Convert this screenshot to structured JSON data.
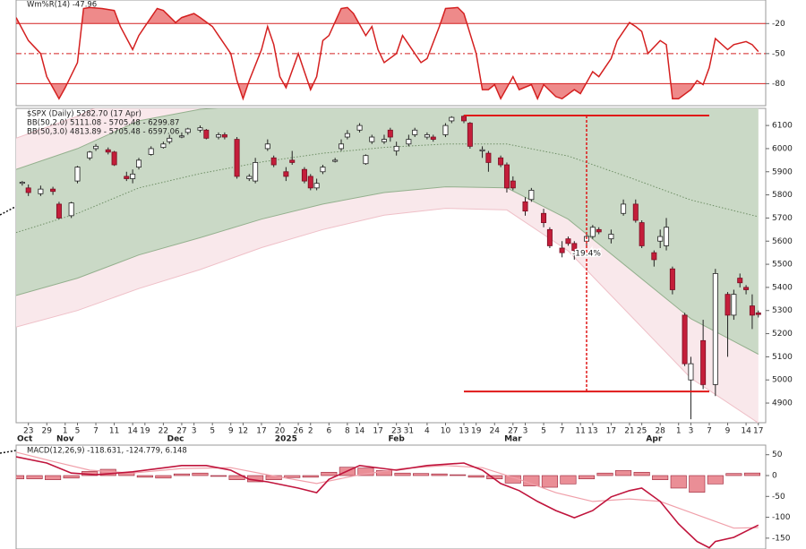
{
  "chart_data": [
    {
      "type": "line",
      "title": "Wm%R(14) -47.96",
      "color": "#d42020",
      "fill_color": "#ee8a8a",
      "xlim": [
        0,
        122.2
      ],
      "ylim": [
        -102,
        3.5
      ],
      "yticks": [
        -20,
        -50,
        -80
      ],
      "grid": true,
      "x": [
        0,
        2,
        4,
        5,
        7,
        8,
        10,
        11,
        12,
        14,
        16,
        17,
        19,
        20,
        21,
        23,
        24,
        26,
        27,
        29,
        30,
        32,
        33,
        35,
        36,
        37,
        38,
        40,
        41,
        42,
        43,
        44,
        46,
        47,
        48,
        49,
        50,
        51,
        53,
        54,
        55,
        57,
        58,
        59,
        60,
        62,
        63,
        65,
        66,
        67,
        69,
        70,
        72,
        73,
        75,
        76,
        77,
        78,
        79,
        81,
        82,
        84,
        85,
        86,
        88,
        89,
        91,
        92,
        94,
        95,
        97,
        98,
        100,
        101,
        102,
        103,
        105,
        106,
        107,
        108,
        110,
        111,
        112,
        113,
        114,
        116,
        117,
        119,
        120,
        121
      ],
      "values": [
        -14,
        -37,
        -50,
        -73,
        -95,
        -84,
        -59,
        -5,
        -4,
        -5,
        -7,
        -23,
        -46,
        -32,
        -23,
        -5,
        -7,
        -19,
        -14,
        -10,
        -14,
        -23,
        -32,
        -50,
        -77,
        -95,
        -77,
        -46,
        -23,
        -41,
        -73,
        -84,
        -50,
        -68,
        -86,
        -73,
        -37,
        -32,
        -5,
        -4,
        -10,
        -32,
        -23,
        -46,
        -59,
        -50,
        -32,
        -50,
        -59,
        -55,
        -23,
        -5,
        -4,
        -10,
        -50,
        -86,
        -86,
        -81,
        -95,
        -73,
        -86,
        -81,
        -95,
        -81,
        -93,
        -95,
        -86,
        -90,
        -68,
        -73,
        -55,
        -37,
        -19,
        -23,
        -28,
        -50,
        -37,
        -41,
        -95,
        -95,
        -86,
        -77,
        -81,
        -64,
        -35,
        -46,
        -41,
        -38,
        -41,
        -47.96
      ]
    },
    {
      "type": "candlestick",
      "title": "$SPX (Daily) 5282.70 (17 Apr)",
      "xlim": [
        0,
        122.2
      ],
      "ylim": [
        4815,
        6174
      ],
      "yticks": [
        4900,
        5000,
        5100,
        5200,
        5300,
        5400,
        5500,
        5600,
        5700,
        5800,
        5900,
        6000,
        6100
      ],
      "xticks": [
        {
          "value": 2,
          "label": "23"
        },
        {
          "value": 5,
          "label": "29"
        },
        {
          "value": 8,
          "label": "1"
        },
        {
          "value": 10,
          "label": "5"
        },
        {
          "value": 13,
          "label": "7"
        },
        {
          "value": 16,
          "label": "11"
        },
        {
          "value": 19,
          "label": "14"
        },
        {
          "value": 21,
          "label": "19"
        },
        {
          "value": 24,
          "label": "22"
        },
        {
          "value": 27,
          "label": "27"
        },
        {
          "value": 29,
          "label": "3"
        },
        {
          "value": 32,
          "label": "5"
        },
        {
          "value": 35,
          "label": "9"
        },
        {
          "value": 37,
          "label": "12"
        },
        {
          "value": 40,
          "label": "17"
        },
        {
          "value": 43,
          "label": "20"
        },
        {
          "value": 46,
          "label": "26"
        },
        {
          "value": 48,
          "label": "2"
        },
        {
          "value": 51,
          "label": "6"
        },
        {
          "value": 54,
          "label": "8"
        },
        {
          "value": 56,
          "label": "14"
        },
        {
          "value": 59,
          "label": "17"
        },
        {
          "value": 62,
          "label": "23"
        },
        {
          "value": 64,
          "label": "31"
        },
        {
          "value": 67,
          "label": "4"
        },
        {
          "value": 70,
          "label": "10"
        },
        {
          "value": 73,
          "label": "13"
        },
        {
          "value": 75,
          "label": "19"
        },
        {
          "value": 78,
          "label": "24"
        },
        {
          "value": 81,
          "label": "27"
        },
        {
          "value": 83,
          "label": "3"
        },
        {
          "value": 86,
          "label": "5"
        },
        {
          "value": 89,
          "label": "7"
        },
        {
          "value": 92,
          "label": "11"
        },
        {
          "value": 94,
          "label": "13"
        },
        {
          "value": 97,
          "label": "17"
        },
        {
          "value": 100,
          "label": "21"
        },
        {
          "value": 102,
          "label": "25"
        },
        {
          "value": 105,
          "label": "28"
        },
        {
          "value": 108,
          "label": "1"
        },
        {
          "value": 110,
          "label": "3"
        },
        {
          "value": 113,
          "label": "7"
        },
        {
          "value": 116,
          "label": "9"
        },
        {
          "value": 119,
          "label": "14"
        },
        {
          "value": 121,
          "label": "17"
        }
      ],
      "month_ticks": [
        {
          "value": 0,
          "label": "Oct"
        },
        {
          "value": 8,
          "label": "Nov"
        },
        {
          "value": 26,
          "label": "Dec"
        },
        {
          "value": 44,
          "label": "2025"
        },
        {
          "value": 62,
          "label": "Feb"
        },
        {
          "value": 81,
          "label": "Mar"
        },
        {
          "value": 104,
          "label": "Apr"
        }
      ],
      "up_color": "#ffffff",
      "down_color": "#c41e3a",
      "x": [
        1,
        2,
        4,
        6,
        7,
        9,
        10,
        12,
        13,
        15,
        16,
        18,
        19,
        20,
        22,
        24,
        25,
        27,
        28,
        30,
        31,
        33,
        34,
        36,
        38,
        39,
        41,
        42,
        44,
        45,
        47,
        48,
        49,
        50,
        52,
        53,
        54,
        56,
        57,
        58,
        60,
        61,
        62,
        64,
        65,
        67,
        68,
        70,
        71,
        73,
        74,
        76,
        77,
        79,
        80,
        81,
        83,
        84,
        86,
        87,
        89,
        90,
        91,
        93,
        94,
        95,
        97,
        99,
        101,
        102,
        104,
        105,
        106,
        107,
        109,
        110,
        112,
        114,
        116,
        117,
        118,
        119,
        120,
        121
      ],
      "open": [
        5850,
        5830,
        5805,
        5825,
        5760,
        5710,
        5860,
        5960,
        6000,
        5995,
        5985,
        5880,
        5870,
        5920,
        5975,
        6005,
        6030,
        6050,
        6070,
        6080,
        6080,
        6050,
        6060,
        6040,
        5870,
        5860,
        6000,
        5960,
        5900,
        5950,
        5910,
        5880,
        5830,
        5900,
        5945,
        6000,
        6050,
        6080,
        5935,
        6030,
        6030,
        6080,
        5990,
        6020,
        6060,
        6050,
        6050,
        6060,
        6120,
        6140,
        6110,
        5990,
        5980,
        5960,
        5930,
        5860,
        5770,
        5780,
        5720,
        5650,
        5570,
        5610,
        5590,
        5600,
        5620,
        5650,
        5610,
        5720,
        5760,
        5680,
        5550,
        5600,
        5580,
        5480,
        5280,
        5000,
        5170,
        4980,
        5370,
        5280,
        5440,
        5400,
        5320,
        5290
      ],
      "high": [
        5860,
        5845,
        5840,
        5835,
        5770,
        5770,
        5925,
        5990,
        6020,
        6005,
        5990,
        5900,
        5910,
        5960,
        6010,
        6030,
        6060,
        6070,
        6090,
        6100,
        6085,
        6070,
        6070,
        6050,
        5890,
        5960,
        6040,
        5970,
        5920,
        5990,
        5920,
        5890,
        5870,
        5930,
        5960,
        6040,
        6080,
        6110,
        5975,
        6060,
        6060,
        6090,
        6030,
        6060,
        6090,
        6070,
        6060,
        6110,
        6140,
        6145,
        6115,
        6010,
        5990,
        5970,
        5940,
        5880,
        5790,
        5830,
        5740,
        5660,
        5600,
        5620,
        5600,
        5640,
        5670,
        5660,
        5650,
        5780,
        5780,
        5690,
        5560,
        5650,
        5700,
        5490,
        5290,
        5100,
        5260,
        5480,
        5380,
        5390,
        5460,
        5410,
        5370,
        5300
      ],
      "low": [
        5840,
        5795,
        5795,
        5800,
        5695,
        5700,
        5850,
        5950,
        5990,
        5975,
        5925,
        5860,
        5850,
        5910,
        5970,
        6000,
        6020,
        6045,
        6060,
        6070,
        6040,
        6040,
        6040,
        5870,
        5860,
        5850,
        5990,
        5920,
        5860,
        5930,
        5850,
        5820,
        5820,
        5890,
        5940,
        5990,
        6040,
        6070,
        5930,
        6020,
        6020,
        6030,
        5970,
        6010,
        6050,
        6040,
        6030,
        6050,
        6110,
        6110,
        6000,
        5960,
        5900,
        5920,
        5810,
        5820,
        5710,
        5770,
        5660,
        5570,
        5530,
        5580,
        5520,
        5580,
        5610,
        5630,
        5590,
        5710,
        5680,
        5570,
        5490,
        5570,
        5560,
        5370,
        5060,
        4830,
        4960,
        4930,
        5100,
        5260,
        5400,
        5370,
        5220,
        5270
      ],
      "close": [
        5855,
        5810,
        5825,
        5815,
        5700,
        5765,
        5920,
        5985,
        6010,
        5985,
        5930,
        5870,
        5890,
        5950,
        6000,
        6020,
        6045,
        6055,
        6085,
        6090,
        6045,
        6060,
        6050,
        5880,
        5880,
        5940,
        6020,
        5930,
        5880,
        5940,
        5860,
        5830,
        5850,
        5920,
        5950,
        6020,
        6065,
        6100,
        5970,
        6050,
        6040,
        6050,
        6010,
        6040,
        6080,
        6060,
        6040,
        6100,
        6135,
        6120,
        6010,
        5995,
        5940,
        5930,
        5830,
        5830,
        5730,
        5820,
        5680,
        5580,
        5550,
        5590,
        5560,
        5620,
        5660,
        5640,
        5630,
        5760,
        5690,
        5580,
        5520,
        5620,
        5660,
        5390,
        5070,
        5070,
        4980,
        5460,
        5280,
        5370,
        5420,
        5390,
        5280,
        5282.7
      ],
      "band_x": [
        0,
        10,
        20,
        30,
        40,
        50,
        60,
        70,
        80,
        90,
        100,
        110,
        121
      ],
      "middle": [
        5637,
        5720,
        5830,
        5892,
        5942,
        5980,
        6005,
        6020,
        6020,
        5968,
        5875,
        5778,
        5705.48
      ],
      "middle_color": "#6f8f66",
      "bands": [
        {
          "name": "BB(50,2.0) 5111.08 - 5705.48 - 6299.87",
          "color": "#2e7d32",
          "fill": "#cad9c6",
          "edge": "#94b08e",
          "upper": [
            5910,
            6000,
            6120,
            6170,
            6190,
            6200,
            6200,
            6205,
            6210,
            6240,
            6270,
            6290,
            6299.87
          ],
          "lower": [
            5365,
            5440,
            5540,
            5615,
            5695,
            5760,
            5810,
            5835,
            5830,
            5695,
            5480,
            5265,
            5111.08
          ]
        },
        {
          "name": "BB(50,3.0) 4813.89 - 5705.48 - 6597.06",
          "color": "#c2185b",
          "fill": "#f9e8eb",
          "edge": "#efc0c8",
          "upper": [
            6045,
            6140,
            6265,
            6309,
            6314,
            6310,
            6298,
            6298,
            6305,
            6376,
            6468,
            6547,
            6597.06
          ],
          "lower": [
            5229,
            5300,
            5395,
            5477,
            5572,
            5650,
            5712,
            5742,
            5735,
            5558,
            5283,
            5008,
            4813.89
          ]
        }
      ],
      "levels": [
        6143,
        4950
      ],
      "level_x": [
        73,
        113
      ],
      "marker_x": 93,
      "level_color": "#e01818",
      "annotation": "-19.4%"
    },
    {
      "type": "macd",
      "title": "MACD(12,26,9) -118.631, -124.779, 6.148",
      "xlim": [
        0,
        122.2
      ],
      "ylim": [
        -176,
        73
      ],
      "yticks": [
        50,
        0,
        -50,
        -100,
        -150
      ],
      "macd": {
        "color": "#c0143c",
        "x": [
          0,
          5,
          9,
          13,
          19,
          27,
          31,
          35,
          38,
          41,
          46,
          49,
          51,
          56,
          62,
          67,
          73,
          76,
          79,
          82,
          85,
          88,
          91,
          94,
          97,
          100,
          102,
          105,
          108,
          111,
          113,
          114,
          117,
          120,
          121
        ],
        "values": [
          45,
          30,
          6,
          2,
          9,
          24,
          24,
          13,
          -9,
          -15,
          -30,
          -41,
          -9,
          24,
          13,
          24,
          30,
          13,
          -19,
          -36,
          -62,
          -84,
          -101,
          -84,
          -51,
          -36,
          -30,
          -62,
          -116,
          -158,
          -173,
          -158,
          -148,
          -126,
          -118.631
        ]
      },
      "signal": {
        "color": "#f0a0aa",
        "x": [
          0,
          6,
          12,
          19,
          27,
          35,
          41,
          49,
          56,
          63,
          70,
          76,
          82,
          88,
          94,
          100,
          105,
          111,
          117,
          121
        ],
        "values": [
          56,
          34,
          13,
          6,
          17,
          19,
          2,
          -19,
          2,
          17,
          24,
          19,
          -9,
          -41,
          -62,
          -56,
          -62,
          -94,
          -126,
          -124.779
        ]
      },
      "histogram": {
        "color": "#ea8e96",
        "edge": "#9a2036",
        "x": [
          0,
          3,
          6,
          9,
          12,
          15,
          18,
          21,
          24,
          27,
          30,
          33,
          36,
          39,
          42,
          45,
          48,
          51,
          54,
          57,
          60,
          63,
          66,
          69,
          72,
          75,
          78,
          81,
          84,
          87,
          90,
          93,
          96,
          99,
          102,
          105,
          108,
          111,
          114,
          117,
          120
        ],
        "values": [
          -8,
          -8,
          -10,
          -6,
          10,
          15,
          8,
          -4,
          -6,
          4,
          6,
          -2,
          -10,
          -15,
          -10,
          -5,
          -4,
          8,
          20,
          18,
          12,
          6,
          5,
          4,
          2,
          -4,
          -8,
          -18,
          -25,
          -28,
          -20,
          -8,
          6,
          12,
          8,
          -10,
          -30,
          -40,
          -20,
          5,
          6.148
        ]
      }
    }
  ]
}
